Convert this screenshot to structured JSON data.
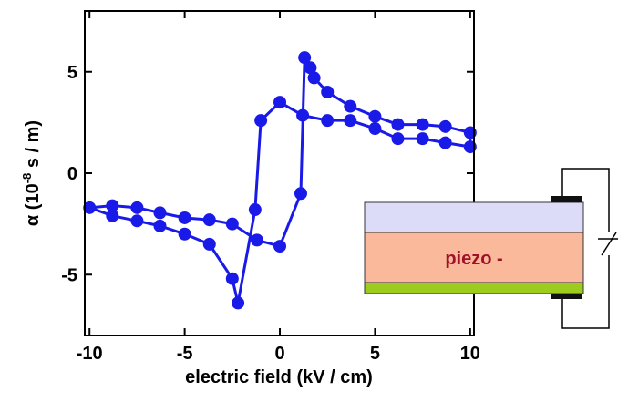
{
  "chart_data": {
    "type": "line",
    "xlabel": "electric field (kV / cm)",
    "ylabel": [
      "α (10",
      "-8",
      " s / m)"
    ],
    "xlim": [
      -10.25,
      10.2
    ],
    "ylim": [
      -8,
      8
    ],
    "xticks": [
      -10,
      -5,
      0,
      5,
      10
    ],
    "yticks": [
      -5,
      0,
      5
    ],
    "series": [
      {
        "color": "#1a1ae8",
        "x": [
          -10,
          -8.8,
          -7.5,
          -6.3,
          -5,
          -3.7,
          -2.5,
          -2.2,
          -1.3,
          -1,
          0,
          1.2,
          2.5,
          3.7,
          5,
          6.2,
          7.5,
          8.7,
          10,
          10,
          8.7,
          7.5,
          6.2,
          5,
          3.7,
          2.5,
          1.8,
          1.6,
          1.3,
          1.1,
          0,
          -1.2,
          -2.5,
          -3.7,
          -5,
          -6.3,
          -7.5,
          -8.8
        ],
        "values": [
          -1.7,
          -2.1,
          -2.35,
          -2.6,
          -3.0,
          -3.5,
          -5.2,
          -6.4,
          -1.8,
          2.6,
          3.5,
          2.85,
          2.6,
          2.6,
          2.2,
          1.7,
          1.7,
          1.5,
          1.3,
          2.0,
          2.3,
          2.4,
          2.4,
          2.8,
          3.3,
          4.0,
          4.7,
          5.2,
          5.7,
          -1.0,
          -3.6,
          -3.3,
          -2.5,
          -2.3,
          -2.2,
          -1.95,
          -1.7,
          -1.6
        ]
      }
    ]
  },
  "diagram": {
    "layer_label": "piezo -"
  }
}
